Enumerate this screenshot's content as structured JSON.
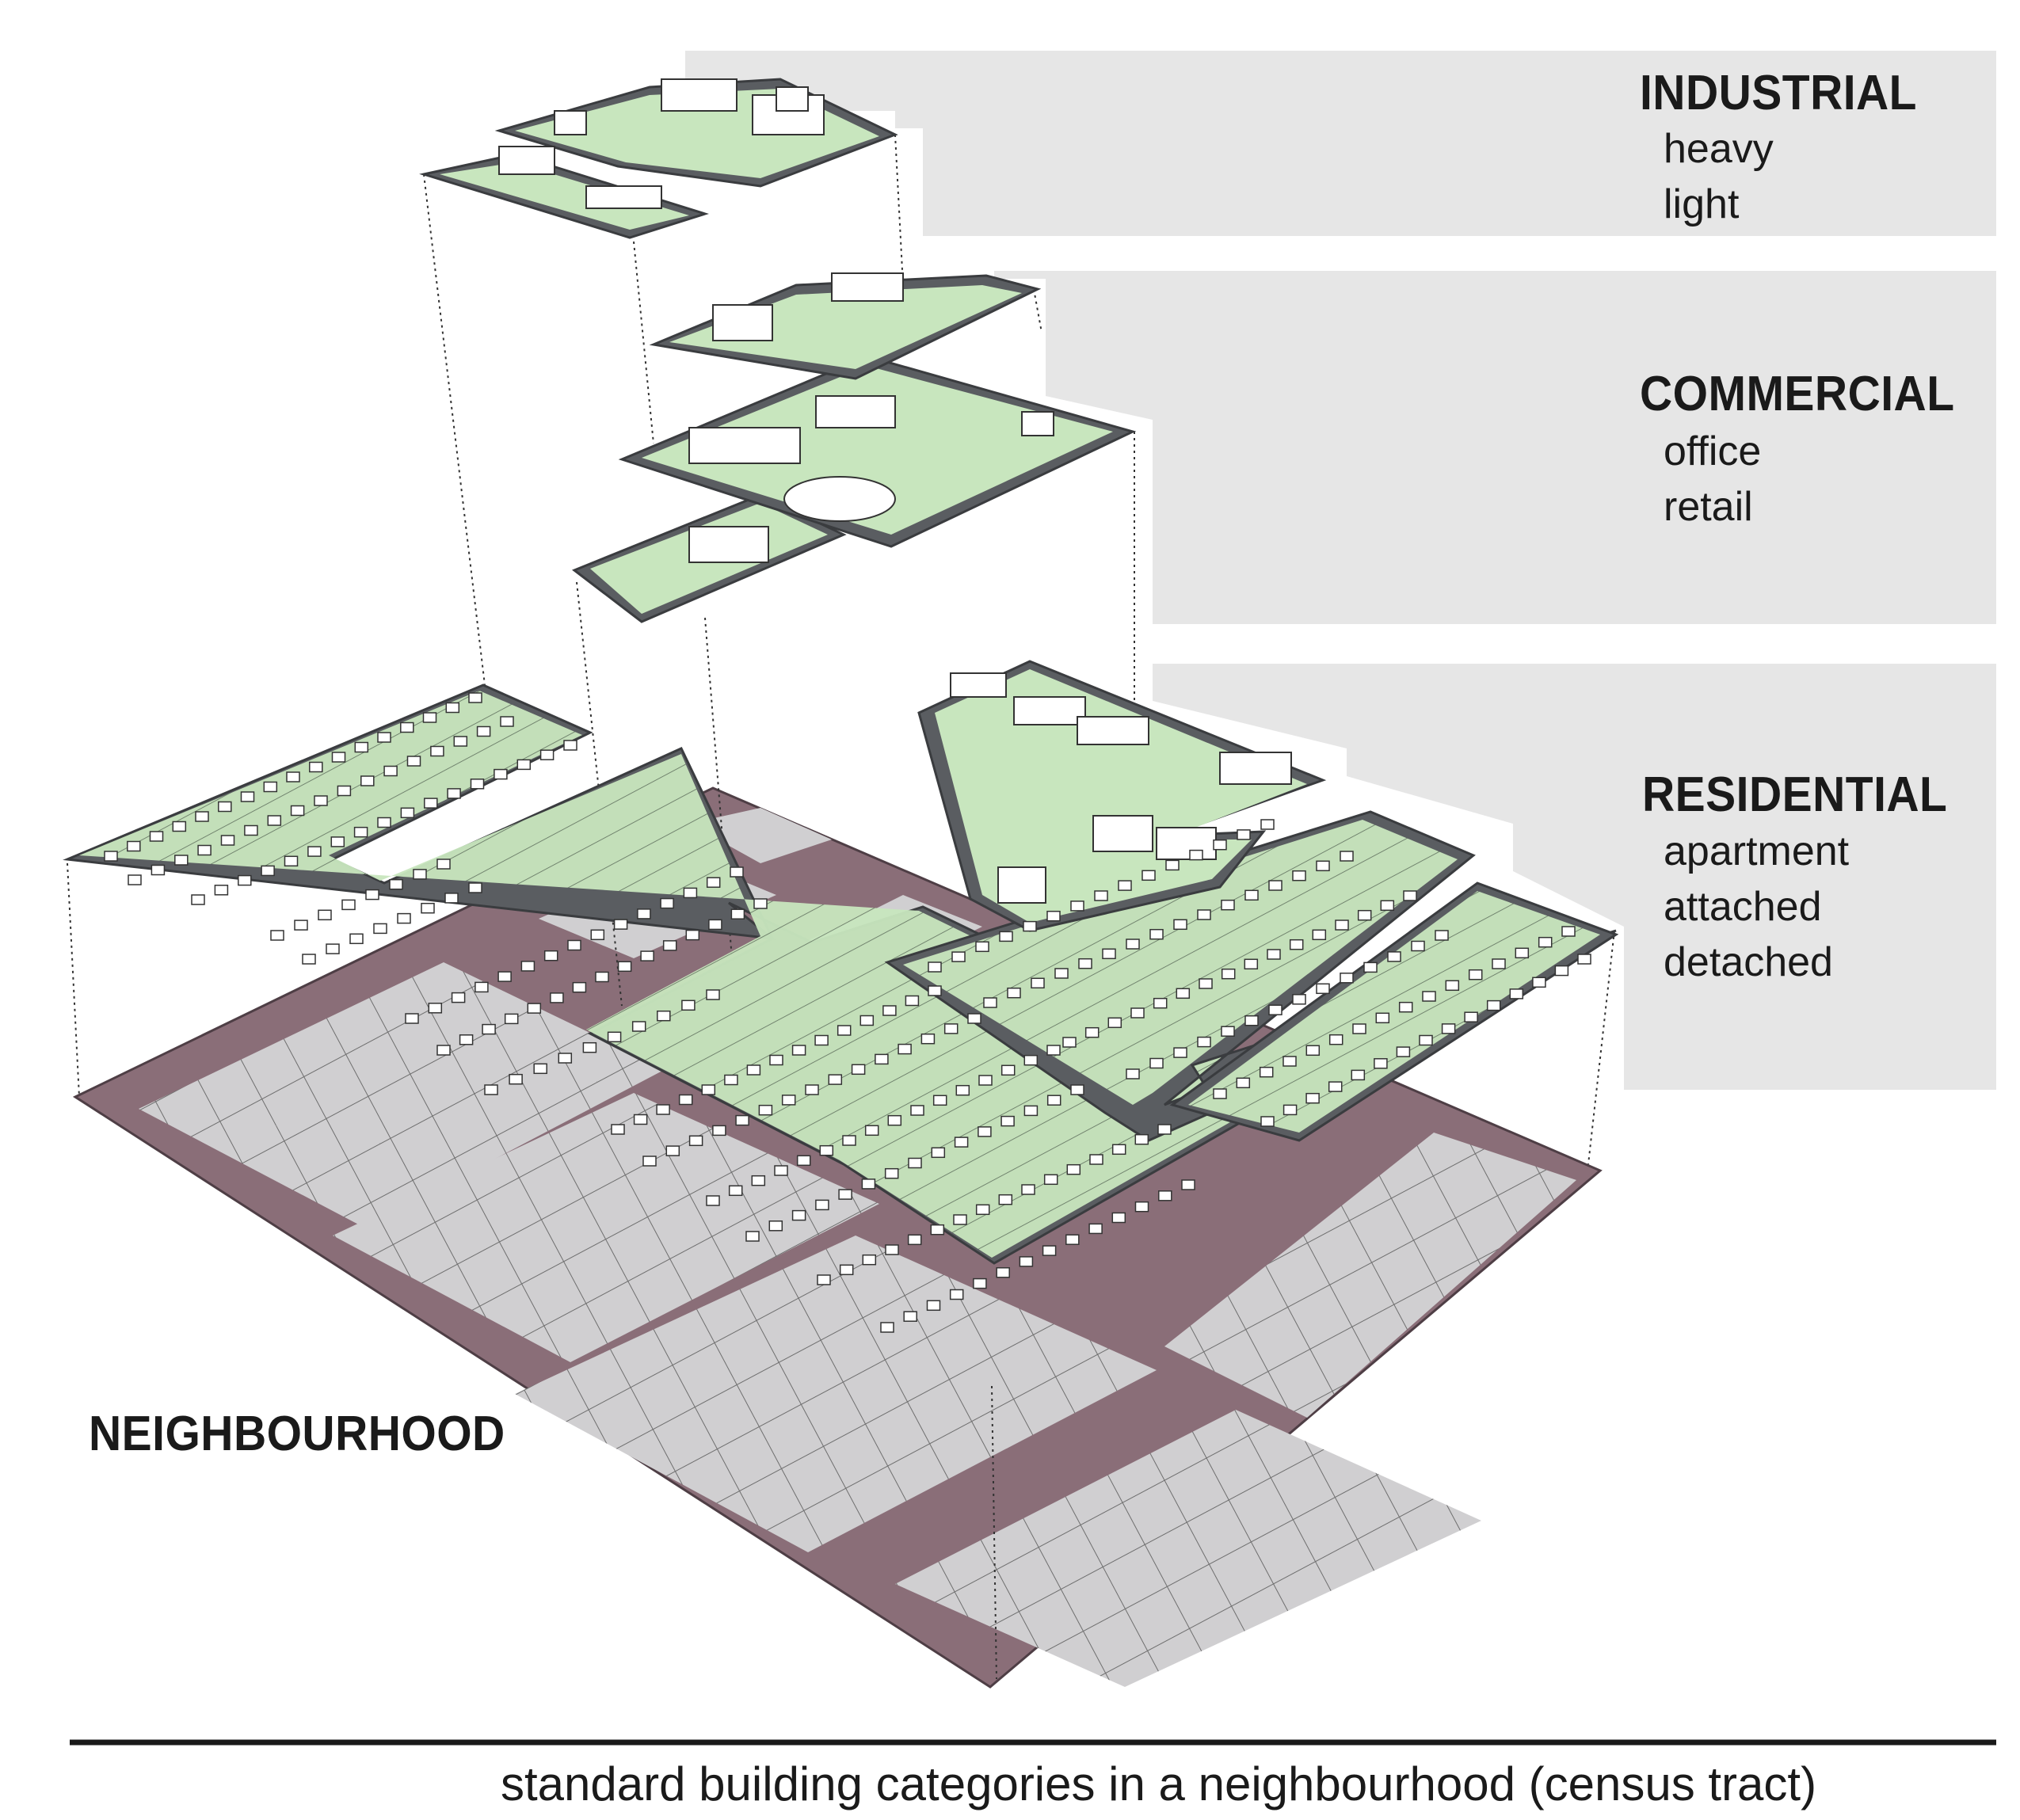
{
  "categories": [
    {
      "title": "INDUSTRIAL",
      "subtypes": [
        "heavy",
        "light"
      ]
    },
    {
      "title": "COMMERCIAL",
      "subtypes": [
        "office",
        "retail"
      ]
    },
    {
      "title": "RESIDENTIAL",
      "subtypes": [
        "apartment",
        "attached",
        "detached"
      ]
    }
  ],
  "base_label": "NEIGHBOURHOOD",
  "caption": "standard building categories in a neighbourhood (census tract)",
  "colors": {
    "panel": "#e6e6e6",
    "parcel_green": "#c8e6be",
    "road_dark": "#5a5d61",
    "base_maroon": "#8a6e78",
    "base_lot": "#d0cfd1",
    "caption_rule": "#1a1a1a"
  }
}
